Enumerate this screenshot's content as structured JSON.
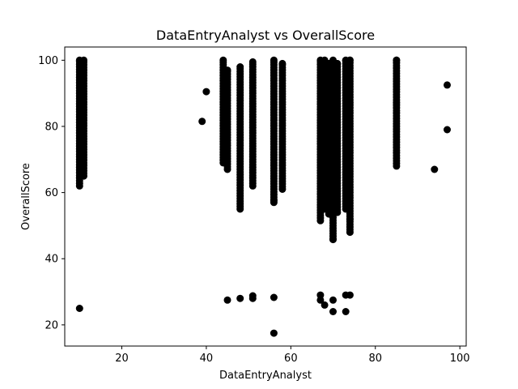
{
  "chart_data": {
    "type": "scatter",
    "title": "DataEntryAnalyst vs OverallScore",
    "xlabel": "DataEntryAnalyst",
    "ylabel": "OverallScore",
    "xlim": [
      6.5,
      101.5
    ],
    "ylim": [
      13.6,
      104
    ],
    "x_ticks": [
      20,
      40,
      60,
      80,
      100
    ],
    "y_ticks": [
      20,
      40,
      60,
      80,
      100
    ],
    "grid": false,
    "legend": "none",
    "marker_color": "#000000",
    "column_points": [
      {
        "x": 10,
        "y_min": 62,
        "y_max": 100,
        "extra": [
          25
        ]
      },
      {
        "x": 11,
        "y_min": 65,
        "y_max": 100,
        "extra": []
      },
      {
        "x": 44,
        "y_min": 69,
        "y_max": 100,
        "extra": []
      },
      {
        "x": 45,
        "y_min": 67,
        "y_max": 97,
        "extra": [
          27.5
        ]
      },
      {
        "x": 48,
        "y_min": 55,
        "y_max": 98,
        "extra": [
          28
        ]
      },
      {
        "x": 51,
        "y_min": 62,
        "y_max": 99.5,
        "extra": [
          28,
          28.8
        ]
      },
      {
        "x": 56,
        "y_min": 57,
        "y_max": 100,
        "extra": [
          28.3,
          17.5
        ]
      },
      {
        "x": 58,
        "y_min": 61,
        "y_max": 99,
        "extra": []
      },
      {
        "x": 67,
        "y_min": 51.5,
        "y_max": 100,
        "extra": [
          29,
          27.5
        ]
      },
      {
        "x": 68,
        "y_min": 55,
        "y_max": 100,
        "extra": [
          26
        ]
      },
      {
        "x": 69,
        "y_min": 53.5,
        "y_max": 99,
        "extra": []
      },
      {
        "x": 70,
        "y_min": 46,
        "y_max": 100,
        "extra": [
          27.5,
          24
        ]
      },
      {
        "x": 71,
        "y_min": 54,
        "y_max": 99,
        "extra": []
      },
      {
        "x": 73,
        "y_min": 55,
        "y_max": 100,
        "extra": [
          29,
          24
        ]
      },
      {
        "x": 74,
        "y_min": 48,
        "y_max": 100,
        "extra": [
          29
        ]
      },
      {
        "x": 85,
        "y_min": 68,
        "y_max": 100,
        "extra": []
      }
    ],
    "single_points": [
      {
        "x": 39,
        "y": 81.5
      },
      {
        "x": 40,
        "y": 90.5
      },
      {
        "x": 94,
        "y": 67
      },
      {
        "x": 97,
        "y": 92.5
      },
      {
        "x": 97,
        "y": 79
      },
      {
        "x": 70,
        "y": 45.8
      },
      {
        "x": 74,
        "y": 52
      },
      {
        "x": 56,
        "y": 57.5
      }
    ]
  }
}
